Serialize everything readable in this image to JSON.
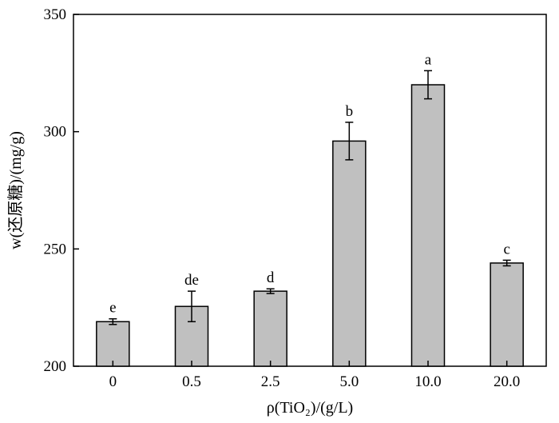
{
  "chart_data": {
    "type": "bar",
    "categories": [
      "0",
      "0.5",
      "2.5",
      "5.0",
      "10.0",
      "20.0"
    ],
    "values": [
      219,
      225.5,
      232,
      296,
      320,
      244
    ],
    "errors": [
      1.2,
      6.5,
      1.0,
      8.0,
      6.0,
      1.2
    ],
    "letters": [
      "e",
      "de",
      "d",
      "b",
      "a",
      "c"
    ],
    "xlabel": "ρ(TiO₂)/(g/L)",
    "ylabel": "w(还原糖)/(mg/g)",
    "ylim": [
      200,
      350
    ],
    "yticks": [
      200,
      250,
      300,
      350
    ],
    "grid": false,
    "colors": {
      "bar": "#c0c0c0",
      "stroke": "#000000"
    }
  }
}
